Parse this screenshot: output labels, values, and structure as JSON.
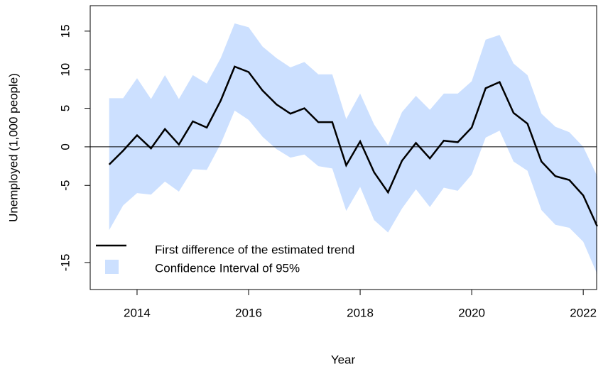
{
  "chart_data": {
    "type": "line",
    "x_label": "Year",
    "y_label": "Unemployed (1,000 people)",
    "x": [
      2013.5,
      2013.75,
      2014,
      2014.25,
      2014.5,
      2014.75,
      2015,
      2015.25,
      2015.5,
      2015.75,
      2016,
      2016.25,
      2016.5,
      2016.75,
      2017,
      2017.25,
      2017.5,
      2017.75,
      2018,
      2018.25,
      2018.5,
      2018.75,
      2019,
      2019.25,
      2019.5,
      2019.75,
      2020,
      2020.25,
      2020.5,
      2020.75,
      2021,
      2021.25,
      2021.5,
      2021.75,
      2022,
      2022.25
    ],
    "series": [
      {
        "name": "First difference of the estimated trend",
        "color": "#000000",
        "values": [
          -2.3,
          -0.5,
          1.5,
          -0.2,
          2.3,
          0.3,
          3.3,
          2.5,
          6.0,
          10.4,
          9.7,
          7.3,
          5.5,
          4.3,
          5.0,
          3.2,
          3.2,
          -2.4,
          0.7,
          -3.3,
          -5.9,
          -1.8,
          0.5,
          -1.5,
          0.8,
          0.6,
          2.5,
          7.6,
          8.4,
          4.4,
          3.0,
          -1.9,
          -3.8,
          -4.3,
          -6.3,
          -10.3
        ]
      },
      {
        "name": "Confidence Interval of 95%",
        "color": "#cce0ff",
        "upper": [
          6.3,
          6.3,
          8.9,
          6.2,
          9.3,
          6.2,
          9.3,
          8.2,
          11.5,
          16.0,
          15.5,
          13.0,
          11.5,
          10.3,
          11.0,
          9.4,
          9.4,
          3.6,
          6.9,
          2.9,
          0.2,
          4.5,
          6.6,
          4.8,
          6.9,
          6.9,
          8.5,
          13.9,
          14.5,
          10.8,
          9.3,
          4.3,
          2.6,
          1.9,
          0.0,
          -3.8
        ],
        "lower": [
          -10.8,
          -7.6,
          -6.0,
          -6.2,
          -4.5,
          -5.8,
          -2.9,
          -3.0,
          0.4,
          4.7,
          3.5,
          1.3,
          -0.3,
          -1.4,
          -1.0,
          -2.5,
          -2.8,
          -8.3,
          -5.2,
          -9.5,
          -11.1,
          -8.0,
          -5.5,
          -7.8,
          -5.3,
          -5.7,
          -3.6,
          1.2,
          2.1,
          -1.9,
          -3.1,
          -8.2,
          -10.1,
          -10.5,
          -12.3,
          -16.5
        ]
      }
    ],
    "reference_line": 0,
    "xlim": [
      2013.16,
      2022.24
    ],
    "ylim": [
      -18.5,
      18.3
    ],
    "xticks": [
      2014,
      2016,
      2018,
      2020,
      2022
    ],
    "yticks": [
      -15,
      -5,
      0,
      5,
      10,
      15
    ],
    "legend": "bottom-left"
  }
}
